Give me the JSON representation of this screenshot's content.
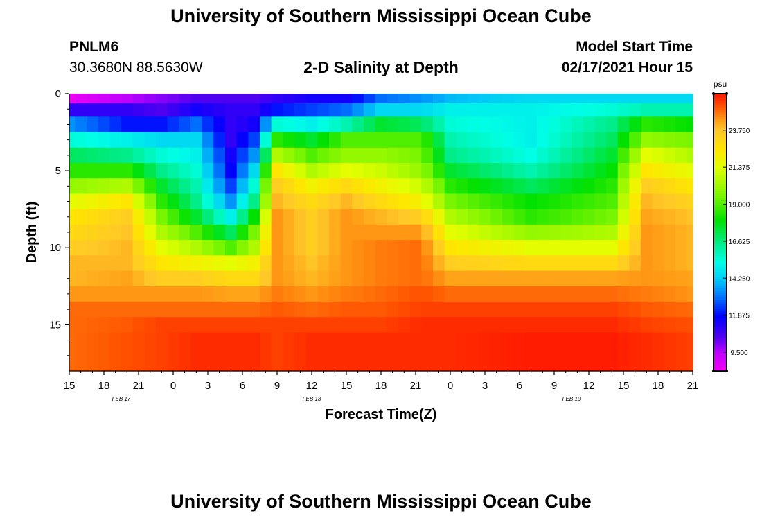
{
  "header": {
    "title": "University of Southern Mississippi Ocean Cube",
    "station_id": "PNLM6",
    "station_coords": "30.3680N 88.5630W",
    "plot_title": "2-D Salinity at Depth",
    "model_start_label": "Model Start Time",
    "model_start_value": "02/17/2021 Hour 15"
  },
  "footer": {
    "title": "University of Southern Mississippi Ocean Cube"
  },
  "chart_data": {
    "type": "heatmap",
    "title": "2-D Salinity at Depth",
    "xlabel": "Forecast Time(Z)",
    "ylabel": "Depth (ft)",
    "colorbar_unit": "psu",
    "colorbar_ticks": [
      "23.750",
      "21.375",
      "19.000",
      "16.625",
      "14.250",
      "11.875",
      "9.500"
    ],
    "colorbar_tick_values": [
      23.75,
      21.375,
      19.0,
      16.625,
      14.25,
      11.875,
      9.5
    ],
    "colorbar_range": [
      8.3,
      26.1
    ],
    "x_range_hours": [
      0,
      54
    ],
    "x_tick_labels": [
      "15",
      "18",
      "21",
      "0",
      "3",
      "6",
      "9",
      "12",
      "15",
      "18",
      "21",
      "0",
      "3",
      "6",
      "9",
      "12",
      "15",
      "18",
      "21"
    ],
    "x_tick_hours": [
      0,
      3,
      6,
      9,
      12,
      15,
      18,
      21,
      24,
      27,
      30,
      33,
      36,
      39,
      42,
      45,
      48,
      51,
      54
    ],
    "date_labels": [
      {
        "text": "FEB 17",
        "hour": 4.5
      },
      {
        "text": "FEB 18",
        "hour": 21
      },
      {
        "text": "FEB 19",
        "hour": 43.5
      }
    ],
    "y_tick_labels": [
      "0",
      "5",
      "10",
      "15"
    ],
    "y_tick_values": [
      0,
      5,
      10,
      15
    ],
    "y_range_ft": [
      0,
      18
    ],
    "depth_levels_ft": [
      0.25,
      1,
      2,
      3,
      4,
      5,
      6,
      7,
      8,
      9,
      10,
      11,
      12,
      13,
      14,
      15,
      16,
      17,
      17.75
    ],
    "anchor_hours": [
      0,
      5,
      8,
      11,
      14,
      16,
      18,
      21,
      24,
      27,
      30.5,
      33,
      40,
      47,
      50,
      54
    ],
    "anchor_profiles": [
      [
        8.5,
        11.0,
        13.5,
        15.5,
        17.0,
        18.5,
        20.0,
        21.5,
        22.5,
        23.0,
        23.5,
        24.0,
        24.0,
        24.5,
        25.0,
        25.0,
        25.0,
        25.0,
        25.0
      ],
      [
        9.5,
        11.0,
        12.0,
        15.0,
        16.5,
        18.5,
        20.5,
        22.5,
        23.5,
        23.8,
        24.0,
        24.0,
        24.3,
        24.5,
        25.0,
        25.2,
        25.3,
        25.3,
        25.3
      ],
      [
        10.0,
        10.5,
        12.0,
        14.5,
        15.5,
        16.5,
        17.5,
        18.5,
        19.5,
        20.5,
        21.5,
        22.5,
        23.5,
        24.5,
        25.0,
        25.5,
        25.5,
        25.5,
        25.5
      ],
      [
        10.5,
        11.5,
        13.0,
        14.5,
        15.0,
        15.5,
        16.0,
        16.5,
        17.5,
        19.0,
        20.5,
        22.0,
        23.5,
        24.5,
        25.0,
        25.5,
        25.8,
        25.8,
        25.8
      ],
      [
        10.5,
        11.0,
        11.0,
        11.0,
        11.5,
        11.8,
        12.5,
        13.5,
        15.0,
        17.0,
        19.0,
        21.5,
        23.0,
        24.3,
        25.0,
        25.5,
        25.8,
        25.8,
        25.8
      ],
      [
        10.5,
        11.0,
        11.5,
        12.5,
        13.5,
        14.5,
        15.5,
        16.5,
        18.0,
        19.5,
        20.5,
        22.0,
        23.0,
        24.3,
        25.0,
        25.5,
        25.8,
        25.8,
        25.8
      ],
      [
        11.0,
        12.0,
        15.5,
        18.5,
        20.5,
        22.5,
        23.5,
        24.0,
        24.5,
        24.5,
        24.5,
        24.5,
        24.5,
        24.8,
        25.2,
        25.5,
        25.5,
        25.5,
        25.5
      ],
      [
        11.5,
        12.5,
        15.0,
        17.5,
        19.0,
        20.5,
        22.0,
        23.0,
        23.5,
        23.5,
        23.5,
        23.8,
        24.0,
        24.5,
        25.0,
        25.5,
        25.8,
        25.8,
        25.8
      ],
      [
        11.5,
        13.0,
        16.0,
        19.0,
        20.0,
        21.5,
        23.0,
        24.0,
        24.5,
        24.5,
        24.5,
        24.5,
        24.5,
        24.8,
        25.2,
        25.5,
        25.8,
        25.8,
        25.8
      ],
      [
        13.0,
        14.5,
        17.5,
        19.0,
        20.0,
        21.0,
        22.0,
        23.0,
        24.0,
        24.5,
        24.8,
        24.8,
        24.8,
        25.0,
        25.2,
        25.5,
        25.8,
        25.8,
        25.8
      ],
      [
        13.5,
        14.5,
        17.0,
        19.0,
        19.5,
        20.0,
        21.0,
        22.0,
        23.5,
        24.5,
        25.0,
        25.0,
        25.0,
        25.3,
        25.5,
        25.8,
        25.8,
        25.8,
        25.8
      ],
      [
        14.0,
        15.0,
        15.5,
        16.0,
        16.5,
        17.5,
        18.5,
        19.5,
        20.5,
        21.5,
        22.5,
        23.5,
        24.3,
        25.0,
        25.5,
        25.8,
        25.8,
        25.8,
        25.8
      ],
      [
        14.5,
        15.0,
        15.0,
        15.0,
        15.3,
        16.0,
        17.0,
        18.0,
        18.5,
        20.0,
        21.5,
        23.0,
        24.3,
        25.0,
        25.5,
        25.8,
        26.0,
        26.0,
        26.0
      ],
      [
        14.5,
        15.5,
        16.5,
        17.0,
        17.5,
        18.0,
        18.5,
        19.0,
        19.5,
        20.5,
        21.5,
        23.0,
        24.3,
        25.0,
        25.5,
        25.8,
        26.0,
        26.0,
        26.0
      ],
      [
        14.5,
        16.0,
        18.5,
        20.0,
        21.5,
        22.5,
        23.5,
        24.0,
        24.3,
        24.5,
        24.5,
        24.5,
        24.5,
        24.8,
        25.2,
        25.5,
        25.8,
        25.8,
        25.8
      ],
      [
        14.5,
        16.0,
        18.0,
        19.5,
        20.5,
        21.5,
        22.5,
        23.3,
        23.8,
        24.0,
        24.0,
        24.0,
        24.3,
        24.5,
        25.0,
        25.3,
        25.5,
        25.5,
        25.5
      ]
    ]
  }
}
